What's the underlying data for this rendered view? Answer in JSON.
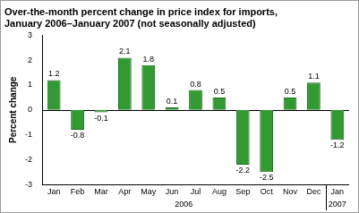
{
  "chart_data": {
    "type": "bar",
    "title": [
      "Over-the-month percent change in price index for imports,",
      "January 2006–January 2007 (not seasonally adjusted)"
    ],
    "y_label": "Percent change",
    "categories": [
      "Jan",
      "Feb",
      "Mar",
      "Apr",
      "May",
      "Jun",
      "Jul",
      "Aug",
      "Sep",
      "Oct",
      "Nov",
      "Dec",
      "Jan"
    ],
    "category_groups": [
      {
        "label": "2006",
        "count": 12
      },
      {
        "label": "2007",
        "count": 1
      }
    ],
    "values": [
      1.2,
      -0.8,
      -0.1,
      2.1,
      1.8,
      0.1,
      0.8,
      0.5,
      -2.2,
      -2.5,
      0.5,
      1.1,
      -1.2
    ],
    "color": "#339933",
    "ylim": [
      -3,
      3
    ],
    "yticks": [
      -3,
      -2,
      -1,
      0,
      1,
      2,
      3
    ],
    "grid": false,
    "data_labels": true
  }
}
